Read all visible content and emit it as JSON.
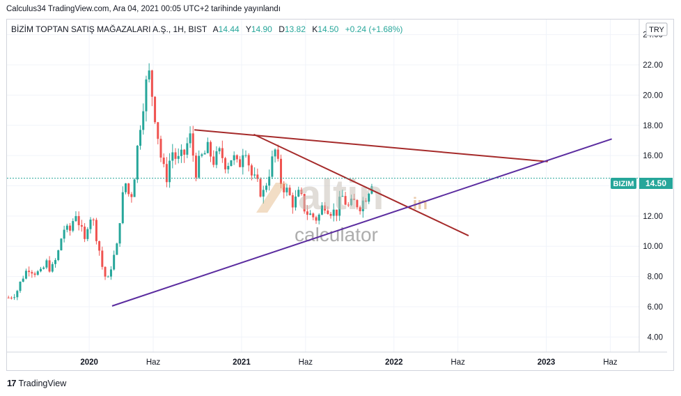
{
  "header": {
    "published": "Calculus34 TradingView.com, Ara 04, 2021 00:05 UTC+2 tarihinde yayınlandı"
  },
  "legend": {
    "symbol": "BİZİM TOPTAN SATIŞ MAĞAZALARI A.Ş., 1H, BIST",
    "open_label": "A",
    "open": "14.44",
    "high_label": "Y",
    "high": "14.90",
    "low_label": "D",
    "low": "13.82",
    "close_label": "K",
    "close": "14.50",
    "change": "+0.24 (+1.68%)"
  },
  "currency_button": "TRY",
  "price_tag": {
    "symbol": "BIZIM",
    "value": "14.50"
  },
  "watermark": {
    "brand": "altin",
    "suffix": ".in",
    "sub": "calculator"
  },
  "footer": {
    "logo": "17",
    "brand": "TradingView"
  },
  "colors": {
    "up": "#26a69a",
    "down": "#ef5350",
    "resistance": "#a52a2a",
    "support": "#5b2c9f",
    "price_line": "#26a69a"
  },
  "chart_data": {
    "type": "candlestick",
    "ylim": [
      3.0,
      25.0
    ],
    "y_ticks": [
      "4.00",
      "6.00",
      "8.00",
      "10.00",
      "12.00",
      "14.00",
      "16.00",
      "18.00",
      "20.00",
      "22.00",
      "24.00"
    ],
    "x_ticks": [
      {
        "label": "2020",
        "t": 2020.0
      },
      {
        "label": "Haz",
        "t": 2020.42
      },
      {
        "label": "2021",
        "t": 2021.0
      },
      {
        "label": "Haz",
        "t": 2021.42
      },
      {
        "label": "2022",
        "t": 2022.0
      },
      {
        "label": "Haz",
        "t": 2022.42
      },
      {
        "label": "2023",
        "t": 2023.0
      },
      {
        "label": "Haz",
        "t": 2023.42
      }
    ],
    "xlim": [
      2019.46,
      2023.61
    ],
    "last_price": 14.5,
    "price_path": [
      [
        2019.47,
        6.6
      ],
      [
        2019.52,
        6.9
      ],
      [
        2019.56,
        7.9
      ],
      [
        2019.6,
        8.6
      ],
      [
        2019.64,
        8.3
      ],
      [
        2019.68,
        8.2
      ],
      [
        2019.72,
        8.9
      ],
      [
        2019.75,
        8.4
      ],
      [
        2019.79,
        9.3
      ],
      [
        2019.83,
        11.2
      ],
      [
        2019.87,
        10.9
      ],
      [
        2019.91,
        12.3
      ],
      [
        2019.94,
        11.3
      ],
      [
        2019.97,
        10.3
      ],
      [
        2020.0,
        12.2
      ],
      [
        2020.03,
        11.5
      ],
      [
        2020.06,
        10.1
      ],
      [
        2020.09,
        8.4
      ],
      [
        2020.12,
        7.6
      ],
      [
        2020.15,
        9.0
      ],
      [
        2020.18,
        9.8
      ],
      [
        2020.21,
        12.8
      ],
      [
        2020.24,
        14.2
      ],
      [
        2020.27,
        13.0
      ],
      [
        2020.3,
        15.0
      ],
      [
        2020.33,
        17.8
      ],
      [
        2020.36,
        20.0
      ],
      [
        2020.39,
        21.5
      ],
      [
        2020.42,
        19.6
      ],
      [
        2020.45,
        17.4
      ],
      [
        2020.48,
        15.2
      ],
      [
        2020.51,
        14.6
      ],
      [
        2020.54,
        16.4
      ],
      [
        2020.58,
        15.6
      ],
      [
        2020.62,
        16.0
      ],
      [
        2020.66,
        17.3
      ],
      [
        2020.7,
        15.0
      ],
      [
        2020.74,
        15.9
      ],
      [
        2020.78,
        16.4
      ],
      [
        2020.82,
        15.6
      ],
      [
        2020.86,
        16.2
      ],
      [
        2020.9,
        15.4
      ],
      [
        2020.94,
        16.0
      ],
      [
        2020.98,
        15.1
      ],
      [
        2021.02,
        17.0
      ],
      [
        2021.06,
        14.8
      ],
      [
        2021.1,
        14.1
      ],
      [
        2021.14,
        13.4
      ],
      [
        2021.18,
        14.9
      ],
      [
        2021.22,
        16.3
      ],
      [
        2021.26,
        14.2
      ],
      [
        2021.3,
        13.6
      ],
      [
        2021.34,
        12.8
      ],
      [
        2021.38,
        13.5
      ],
      [
        2021.42,
        12.3
      ],
      [
        2021.46,
        12.0
      ],
      [
        2021.5,
        11.8
      ],
      [
        2021.54,
        12.9
      ],
      [
        2021.58,
        12.4
      ],
      [
        2021.62,
        12.2
      ],
      [
        2021.66,
        13.3
      ],
      [
        2021.7,
        12.6
      ],
      [
        2021.74,
        12.9
      ],
      [
        2021.78,
        12.7
      ],
      [
        2021.82,
        13.4
      ],
      [
        2021.86,
        14.5
      ]
    ],
    "trendlines": [
      {
        "name": "resistance-1",
        "color": "#a52a2a",
        "from": [
          2020.69,
          17.7
        ],
        "to": [
          2023.01,
          15.6
        ]
      },
      {
        "name": "resistance-2",
        "color": "#a52a2a",
        "from": [
          2021.08,
          17.4
        ],
        "to": [
          2022.49,
          10.7
        ]
      },
      {
        "name": "support",
        "color": "#5b2c9f",
        "from": [
          2020.15,
          6.05
        ],
        "to": [
          2023.43,
          17.1
        ]
      }
    ]
  }
}
